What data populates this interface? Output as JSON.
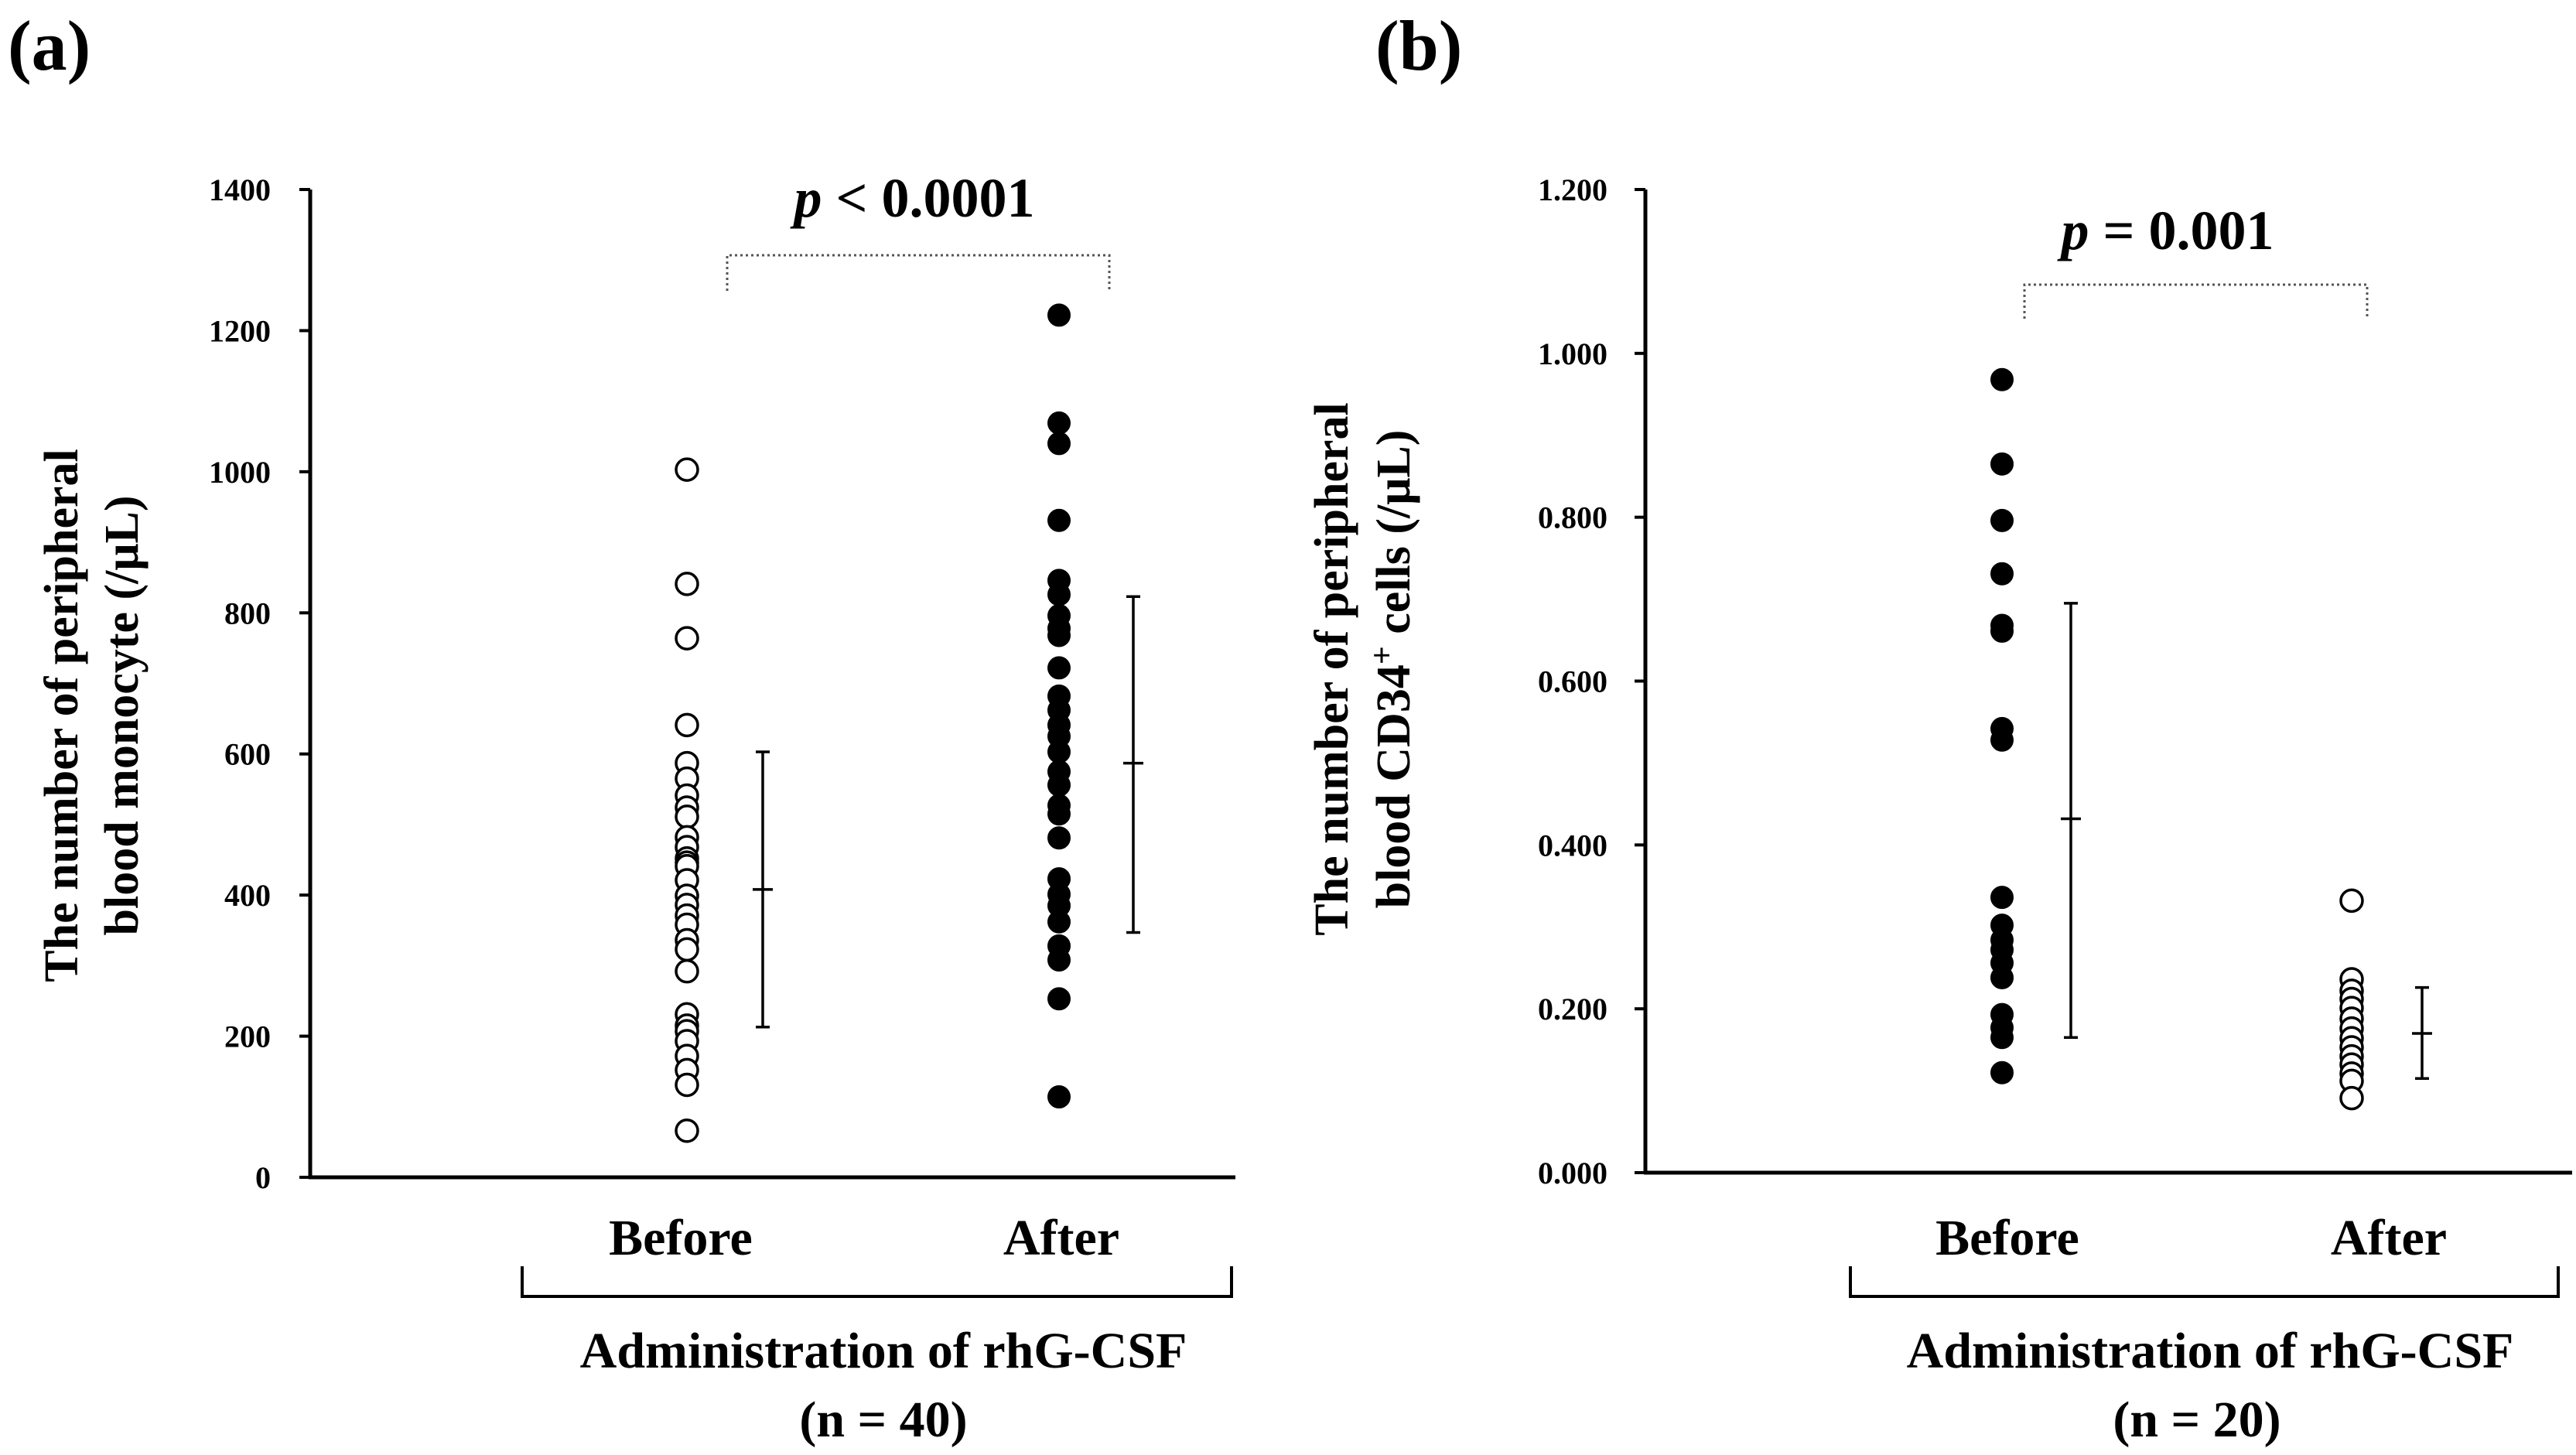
{
  "chart_data": [
    {
      "type": "scatter",
      "panel_label": "(a)",
      "ylabel": [
        "The number of peripheral",
        "blood monocyte (/μL)"
      ],
      "ylim": [
        0,
        1400
      ],
      "yticks": [
        "0",
        "200",
        "400",
        "600",
        "800",
        "1000",
        "1200",
        "1400"
      ],
      "categories": [
        "Before",
        "After"
      ],
      "group_label": "Administration of rhG-CSF",
      "n_label": "(n = 40)",
      "p_prefix": "p",
      "p_text": " < 0.0001",
      "series": [
        {
          "name": "Before",
          "marker": "open",
          "mean": 408,
          "err_low": 213,
          "err_high": 603,
          "values": [
            1003,
            841,
            764,
            641,
            587,
            565,
            541,
            524,
            511,
            482,
            468,
            452,
            446,
            441,
            421,
            399,
            386,
            371,
            358,
            336,
            323,
            292,
            231,
            215,
            207,
            193,
            172,
            152,
            131,
            66
          ]
        },
        {
          "name": "After",
          "marker": "filled",
          "mean": 587,
          "err_low": 347,
          "err_high": 823,
          "values": [
            1222,
            1069,
            1040,
            931,
            846,
            826,
            796,
            778,
            768,
            722,
            682,
            662,
            641,
            625,
            603,
            575,
            556,
            527,
            515,
            481,
            423,
            401,
            385,
            362,
            328,
            308,
            253,
            114
          ]
        }
      ]
    },
    {
      "type": "scatter",
      "panel_label": "(b)",
      "ylabel": [
        "The number of peripheral",
        "blood CD34",
        "+",
        " cells (/μL)"
      ],
      "ylim": [
        0,
        1.2
      ],
      "yticks": [
        "0.000",
        "0.200",
        "0.400",
        "0.600",
        "0.800",
        "1.000",
        "1.200"
      ],
      "categories": [
        "Before",
        "After"
      ],
      "group_label": "Administration of rhG-CSF",
      "n_label": "(n = 20)",
      "p_prefix": "p",
      "p_text": " = 0.001",
      "series": [
        {
          "name": "Before",
          "marker": "filled",
          "mean": 0.432,
          "err_low": 0.165,
          "err_high": 0.695,
          "values": [
            0.968,
            0.865,
            0.796,
            0.731,
            0.668,
            0.661,
            0.542,
            0.528,
            0.336,
            0.302,
            0.284,
            0.272,
            0.256,
            0.238,
            0.193,
            0.177,
            0.165,
            0.122
          ]
        },
        {
          "name": "After",
          "marker": "open",
          "mean": 0.17,
          "err_low": 0.115,
          "err_high": 0.226,
          "values": [
            0.332,
            0.236,
            0.222,
            0.212,
            0.201,
            0.188,
            0.176,
            0.164,
            0.153,
            0.142,
            0.132,
            0.121,
            0.112,
            0.091
          ]
        }
      ]
    }
  ]
}
